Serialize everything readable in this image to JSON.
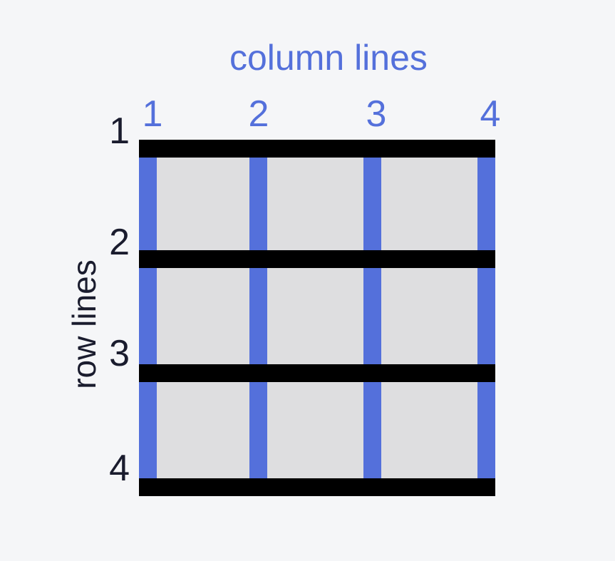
{
  "column_title": "column lines",
  "row_title": "row lines",
  "column_numbers": [
    "1",
    "2",
    "3",
    "4"
  ],
  "row_numbers": [
    "1",
    "2",
    "3",
    "4"
  ],
  "colors": {
    "background": "#f5f6f8",
    "column_line": "#5470db",
    "row_line": "#000000",
    "cell": "#dedee0",
    "row_text": "#1a1c2e"
  }
}
